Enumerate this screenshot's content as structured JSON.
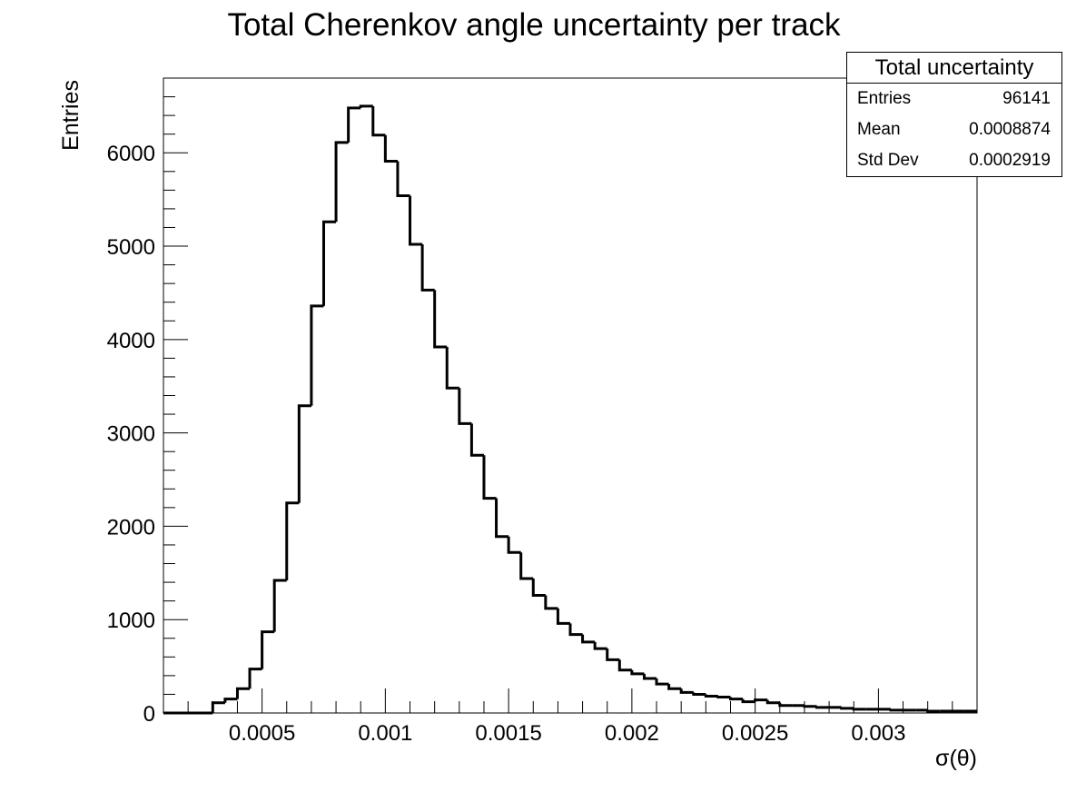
{
  "chart_data": {
    "type": "bar",
    "title": "Total Cherenkov angle uncertainty per track",
    "xlabel": "σ(θ)",
    "ylabel": "Entries",
    "xlim": [
      0.0001,
      0.0034
    ],
    "ylim": [
      0,
      6800
    ],
    "bin_width": 5e-05,
    "x_bin_lows": [
      0.0003,
      0.00035,
      0.0004,
      0.00045,
      0.0005,
      0.00055,
      0.0006,
      0.00065,
      0.0007,
      0.00075,
      0.0008,
      0.00085,
      0.0009,
      0.00095,
      0.001,
      0.00105,
      0.0011,
      0.00115,
      0.0012,
      0.00125,
      0.0013,
      0.00135,
      0.0014,
      0.00145,
      0.0015,
      0.00155,
      0.0016,
      0.00165,
      0.0017,
      0.00175,
      0.0018,
      0.00185,
      0.0019,
      0.00195,
      0.002,
      0.00205,
      0.0021,
      0.00215,
      0.0022,
      0.00225,
      0.0023,
      0.00235,
      0.0024,
      0.00245,
      0.0025,
      0.00255,
      0.0026,
      0.00265,
      0.0027,
      0.00275,
      0.0028,
      0.00285,
      0.0029,
      0.00295,
      0.003,
      0.00305,
      0.0031,
      0.00315,
      0.0032,
      0.00325,
      0.0033,
      0.00335
    ],
    "values": [
      110,
      150,
      260,
      470,
      870,
      1420,
      2250,
      3290,
      4360,
      5260,
      6110,
      6480,
      6500,
      6190,
      5910,
      5540,
      5020,
      4530,
      3920,
      3480,
      3100,
      2760,
      2300,
      1890,
      1720,
      1440,
      1260,
      1120,
      960,
      840,
      760,
      690,
      570,
      460,
      420,
      370,
      310,
      260,
      220,
      200,
      180,
      170,
      150,
      120,
      140,
      110,
      80,
      80,
      70,
      60,
      60,
      50,
      40,
      40,
      40,
      30,
      30,
      30,
      20,
      20,
      20,
      20
    ],
    "x_ticks": [
      0.0005,
      0.001,
      0.0015,
      0.002,
      0.0025,
      0.003
    ],
    "x_tick_labels": [
      "0.0005",
      "0.001",
      "0.0015",
      "0.002",
      "0.0025",
      "0.003"
    ],
    "y_ticks": [
      0,
      1000,
      2000,
      3000,
      4000,
      5000,
      6000
    ],
    "y_tick_labels": [
      "0",
      "1000",
      "2000",
      "3000",
      "4000",
      "5000",
      "6000"
    ],
    "grid": false,
    "legend": "none"
  },
  "stats_box": {
    "title": "Total uncertainty",
    "rows": [
      {
        "label": "Entries",
        "value": "96141"
      },
      {
        "label": "Mean",
        "value": "0.0008874"
      },
      {
        "label": "Std Dev",
        "value": "0.0002919"
      }
    ]
  },
  "colors": {
    "line": "#000000",
    "background": "#ffffff"
  }
}
